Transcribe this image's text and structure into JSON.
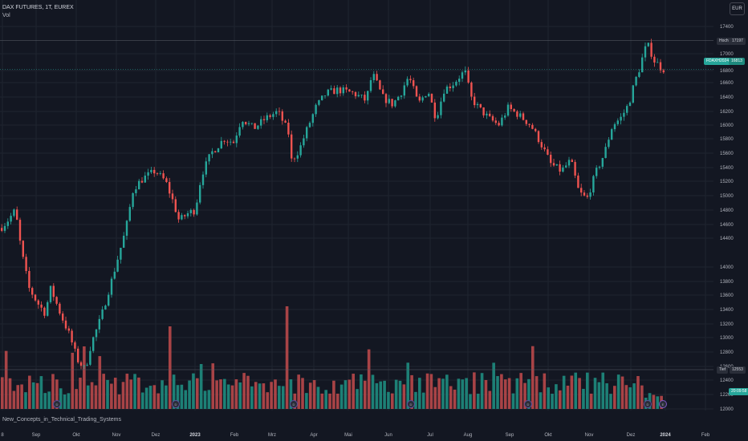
{
  "header": {
    "symbol": "DAX FUTURES, 1T, EUREX",
    "volume_label": "Vol",
    "currency": "EUR"
  },
  "strategy_label": "New_Concepts_in_Technical_Trading_Systems",
  "price_labels": {
    "high_label": "Hoch",
    "high_value": "17197",
    "symbol_label": "FDAXH2024",
    "symbol_value": "16813",
    "low_label": "Tief",
    "low_value": "12553",
    "countdown": "20:09:58"
  },
  "colors": {
    "background": "#131722",
    "up": "#26a69a",
    "down": "#ef5350",
    "grid": "#1f2430",
    "text": "#b2b5be"
  },
  "chart_data": {
    "type": "candlestick",
    "price_axis_ticks": [
      "17400",
      "17000",
      "16800",
      "16600",
      "16400",
      "16200",
      "16000",
      "15800",
      "15600",
      "15400",
      "15200",
      "15000",
      "14800",
      "14600",
      "14400",
      "14000",
      "13800",
      "13600",
      "13400",
      "13200",
      "13000",
      "12800",
      "12600",
      "12400",
      "12200",
      "12000"
    ],
    "time_axis_labels": [
      "8",
      "Sep",
      "Okt",
      "Nov",
      "Dez",
      "2023",
      "Feb",
      "Mrz",
      "Apr",
      "Mai",
      "Jun",
      "Jul",
      "Aug",
      "Sep",
      "Okt",
      "Nov",
      "Dez",
      "2024",
      "Feb"
    ],
    "key_levels": {
      "high": 17197,
      "last": 16813,
      "low": 12553
    },
    "price_anchors": [
      [
        0,
        14550
      ],
      [
        8,
        14650
      ],
      [
        18,
        14800
      ],
      [
        25,
        14250
      ],
      [
        35,
        13700
      ],
      [
        45,
        13500
      ],
      [
        55,
        13350
      ],
      [
        62,
        13700
      ],
      [
        72,
        13400
      ],
      [
        85,
        13050
      ],
      [
        95,
        12700
      ],
      [
        105,
        12550
      ],
      [
        112,
        12900
      ],
      [
        125,
        13300
      ],
      [
        140,
        13900
      ],
      [
        155,
        14500
      ],
      [
        165,
        15100
      ],
      [
        178,
        15250
      ],
      [
        192,
        15350
      ],
      [
        205,
        15200
      ],
      [
        215,
        14900
      ],
      [
        222,
        14650
      ],
      [
        232,
        14750
      ],
      [
        242,
        14800
      ],
      [
        250,
        15300
      ],
      [
        262,
        15600
      ],
      [
        278,
        15800
      ],
      [
        290,
        15750
      ],
      [
        300,
        16100
      ],
      [
        315,
        15950
      ],
      [
        330,
        16100
      ],
      [
        345,
        16200
      ],
      [
        358,
        15900
      ],
      [
        362,
        15500
      ],
      [
        372,
        15650
      ],
      [
        380,
        15900
      ],
      [
        392,
        16250
      ],
      [
        405,
        16450
      ],
      [
        420,
        16500
      ],
      [
        440,
        16450
      ],
      [
        455,
        16350
      ],
      [
        463,
        16750
      ],
      [
        475,
        16400
      ],
      [
        488,
        16300
      ],
      [
        498,
        16450
      ],
      [
        508,
        16700
      ],
      [
        520,
        16300
      ],
      [
        532,
        16500
      ],
      [
        542,
        16100
      ],
      [
        552,
        16500
      ],
      [
        565,
        16600
      ],
      [
        578,
        16800
      ],
      [
        585,
        16400
      ],
      [
        595,
        16250
      ],
      [
        608,
        16100
      ],
      [
        620,
        16000
      ],
      [
        632,
        16250
      ],
      [
        645,
        16150
      ],
      [
        660,
        16000
      ],
      [
        672,
        15750
      ],
      [
        685,
        15450
      ],
      [
        698,
        15350
      ],
      [
        710,
        15500
      ],
      [
        720,
        15050
      ],
      [
        730,
        14950
      ],
      [
        742,
        15350
      ],
      [
        752,
        15600
      ],
      [
        762,
        16000
      ],
      [
        772,
        16100
      ],
      [
        782,
        16300
      ],
      [
        792,
        16700
      ],
      [
        805,
        17150
      ],
      [
        815,
        16900
      ],
      [
        826,
        16813
      ]
    ],
    "volume_bars": 170,
    "event_markers": [
      "D",
      "D",
      "D",
      "D",
      "D",
      "D",
      "D",
      "E"
    ]
  }
}
